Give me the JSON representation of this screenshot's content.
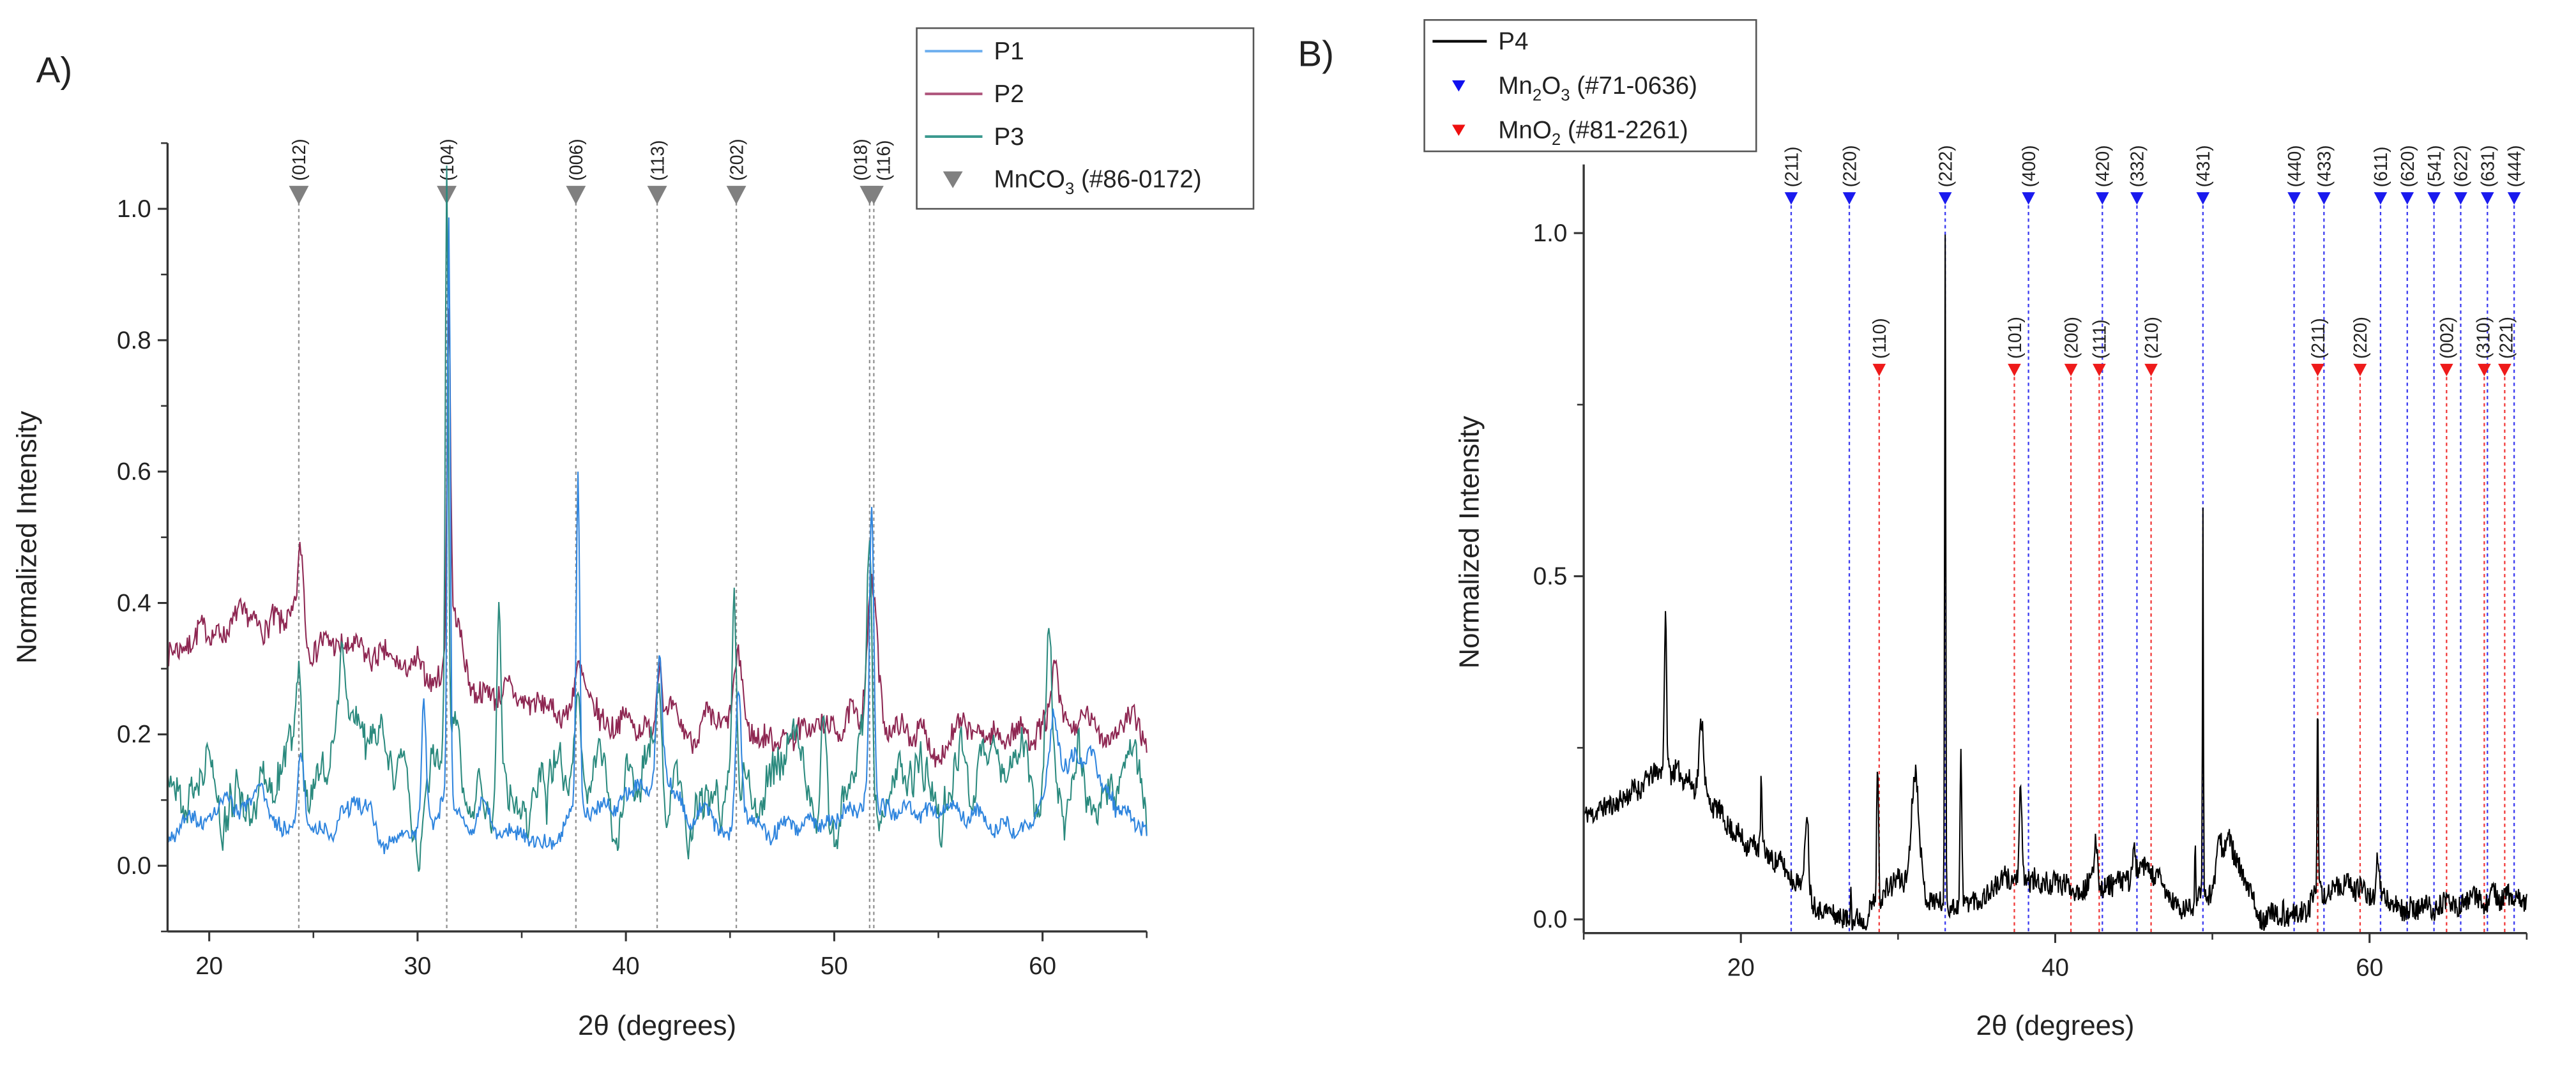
{
  "chart_data": [
    {
      "type": "line",
      "panel_label": "A)",
      "xlabel": "2θ (degrees)",
      "ylabel": "Normalized Intensity",
      "xlim": [
        18,
        65
      ],
      "ylim": [
        -0.1,
        1.1
      ],
      "xticks": [
        20,
        30,
        40,
        50,
        60
      ],
      "xminor": [
        25,
        35,
        45,
        55,
        65
      ],
      "yticks": [
        "0.0",
        "0.2",
        "0.4",
        "0.6",
        "0.8",
        "1.0"
      ],
      "yminor": [
        -0.1,
        0.1,
        0.3,
        0.5,
        0.7,
        0.9,
        1.1
      ],
      "grid": false,
      "legend_position": "top-right",
      "legend": [
        {
          "label": "P1",
          "kind": "line",
          "color": "#6fb0ef"
        },
        {
          "label": "P2",
          "kind": "line",
          "color": "#b0587e"
        },
        {
          "label": "P3",
          "kind": "line",
          "color": "#3c9a8f"
        },
        {
          "label": "MnCO",
          "sub": "3",
          "suffix": " (#86-0172)",
          "kind": "triangle",
          "color": "#808080"
        }
      ],
      "reference": {
        "name": "MnCO3 (#86-0172)",
        "color": "#808080",
        "marker_y": 1.02,
        "peaks": [
          {
            "x": 24.3,
            "hkl": "(012)"
          },
          {
            "x": 31.4,
            "hkl": "(104)"
          },
          {
            "x": 37.6,
            "hkl": "(006)"
          },
          {
            "x": 41.5,
            "hkl": "(113)"
          },
          {
            "x": 45.3,
            "hkl": "(202)"
          },
          {
            "x": 51.7,
            "hkl": "(018)"
          },
          {
            "x": 51.9,
            "hkl": "(116)"
          }
        ]
      },
      "series": [
        {
          "name": "P2",
          "color": "#8e2752",
          "step": 0.05,
          "seed": 7,
          "baseline": [
            [
              18,
              0.33
            ],
            [
              20,
              0.36
            ],
            [
              24,
              0.36
            ],
            [
              26,
              0.33
            ],
            [
              28,
              0.31
            ],
            [
              30,
              0.29
            ],
            [
              33,
              0.27
            ],
            [
              36,
              0.24
            ],
            [
              40,
              0.22
            ],
            [
              44,
              0.2
            ],
            [
              48,
              0.2
            ],
            [
              52,
              0.22
            ],
            [
              55,
              0.19
            ],
            [
              60,
              0.21
            ],
            [
              65,
              0.21
            ]
          ],
          "noise": {
            "smooth": 0.025,
            "white": 0.018
          },
          "peaks": [
            [
              24.4,
              0.13,
              0.2
            ],
            [
              31.5,
              0.5,
              0.12
            ],
            [
              31.8,
              0.1,
              0.5
            ],
            [
              37.7,
              0.06,
              0.3
            ],
            [
              41.6,
              0.12,
              0.2
            ],
            [
              45.4,
              0.11,
              0.3
            ],
            [
              51.8,
              0.2,
              0.35
            ],
            [
              60.6,
              0.08,
              0.2
            ]
          ]
        },
        {
          "name": "P3",
          "color": "#2b8a7e",
          "step": 0.05,
          "seed": 21,
          "baseline": [
            [
              18,
              0.12
            ],
            [
              22,
              0.12
            ],
            [
              26,
              0.15
            ],
            [
              30,
              0.16
            ],
            [
              34,
              0.14
            ],
            [
              38,
              0.12
            ],
            [
              42,
              0.12
            ],
            [
              46,
              0.11
            ],
            [
              50,
              0.12
            ],
            [
              54,
              0.12
            ],
            [
              58,
              0.12
            ],
            [
              62,
              0.11
            ],
            [
              65,
              0.1
            ]
          ],
          "noise": {
            "smooth": 0.11,
            "white": 0.012
          },
          "peaks": [
            [
              24.3,
              0.18,
              0.2
            ],
            [
              26.4,
              0.13,
              0.2
            ],
            [
              31.4,
              0.85,
              0.1
            ],
            [
              33.9,
              0.27,
              0.15
            ],
            [
              37.7,
              0.12,
              0.2
            ],
            [
              41.6,
              0.15,
              0.2
            ],
            [
              45.2,
              0.28,
              0.15
            ],
            [
              49.5,
              0.18,
              0.2
            ],
            [
              51.7,
              0.36,
              0.18
            ],
            [
              60.3,
              0.2,
              0.2
            ]
          ]
        },
        {
          "name": "P1",
          "color": "#2f85de",
          "step": 0.05,
          "seed": 3,
          "baseline": [
            [
              18,
              0.06
            ],
            [
              20,
              0.07
            ],
            [
              22,
              0.09
            ],
            [
              24,
              0.06
            ],
            [
              26,
              0.07
            ],
            [
              27,
              0.11
            ],
            [
              28.5,
              0.02
            ],
            [
              30,
              0.05
            ],
            [
              32,
              0.09
            ],
            [
              34,
              0.05
            ],
            [
              36,
              0.06
            ],
            [
              38,
              0.08
            ],
            [
              40,
              0.11
            ],
            [
              42,
              0.12
            ],
            [
              44,
              0.06
            ],
            [
              46,
              0.05
            ],
            [
              48,
              0.06
            ],
            [
              50,
              0.08
            ],
            [
              53,
              0.09
            ],
            [
              56,
              0.07
            ],
            [
              58,
              0.07
            ],
            [
              60,
              0.1
            ],
            [
              61.5,
              0.18
            ],
            [
              63,
              0.12
            ],
            [
              65,
              0.04
            ]
          ],
          "noise": {
            "smooth": 0.025,
            "white": 0.012
          },
          "peaks": [
            [
              24.4,
              0.11,
              0.2
            ],
            [
              30.3,
              0.18,
              0.15
            ],
            [
              31.5,
              0.9,
              0.1
            ],
            [
              37.7,
              0.5,
              0.12
            ],
            [
              41.6,
              0.2,
              0.2
            ],
            [
              45.4,
              0.22,
              0.2
            ],
            [
              51.8,
              0.45,
              0.15
            ],
            [
              60.5,
              0.1,
              0.3
            ]
          ]
        }
      ]
    },
    {
      "type": "line",
      "panel_label": "B)",
      "xlabel": "2θ (degrees)",
      "ylabel": "Normalized Intensity",
      "xlim": [
        10,
        70
      ],
      "ylim": [
        -0.02,
        1.1
      ],
      "xticks": [
        20,
        40,
        60
      ],
      "xminor": [
        10,
        30,
        50,
        70
      ],
      "yticks": [
        "0.0",
        "0.5",
        "1.0"
      ],
      "yminor": [
        0.25,
        0.75
      ],
      "grid": false,
      "legend_position": "top-left",
      "legend": [
        {
          "label": "P4",
          "kind": "line",
          "color": "#000000"
        },
        {
          "label": "Mn",
          "sub": "2",
          "mid": "O",
          "sub2": "3",
          "suffix": " (#71-0636)",
          "kind": "triangle",
          "color": "#1010ee"
        },
        {
          "label": "MnO",
          "sub": "2",
          "suffix": " (#81-2261)",
          "kind": "triangle",
          "color": "#ee1010"
        }
      ],
      "references": [
        {
          "name": "Mn2O3 (#71-0636)",
          "color": "#1a1aee",
          "marker_y": 1.05,
          "peaks": [
            {
              "x": 23.2,
              "hkl": "(211)"
            },
            {
              "x": 26.9,
              "hkl": "(220)"
            },
            {
              "x": 33.0,
              "hkl": "(222)"
            },
            {
              "x": 38.3,
              "hkl": "(400)"
            },
            {
              "x": 43.0,
              "hkl": "(420)"
            },
            {
              "x": 45.2,
              "hkl": "(332)"
            },
            {
              "x": 49.4,
              "hkl": "(431)"
            },
            {
              "x": 55.2,
              "hkl": "(440)"
            },
            {
              "x": 57.1,
              "hkl": "(433)"
            },
            {
              "x": 60.7,
              "hkl": "(611)"
            },
            {
              "x": 62.4,
              "hkl": "(620)"
            },
            {
              "x": 64.1,
              "hkl": "(541)"
            },
            {
              "x": 65.8,
              "hkl": "(622)"
            },
            {
              "x": 67.5,
              "hkl": "(631)"
            },
            {
              "x": 69.2,
              "hkl": "(444)"
            }
          ]
        },
        {
          "name": "MnO2 (#81-2261)",
          "color": "#ee1a1a",
          "marker_y": 0.8,
          "peaks": [
            {
              "x": 28.8,
              "hkl": "(110)"
            },
            {
              "x": 37.4,
              "hkl": "(101)"
            },
            {
              "x": 41.0,
              "hkl": "(200)"
            },
            {
              "x": 42.8,
              "hkl": "(111)"
            },
            {
              "x": 46.1,
              "hkl": "(210)"
            },
            {
              "x": 56.7,
              "hkl": "(211)"
            },
            {
              "x": 59.4,
              "hkl": "(220)"
            },
            {
              "x": 64.9,
              "hkl": "(002)"
            },
            {
              "x": 67.3,
              "hkl": "(310)"
            },
            {
              "x": 68.6,
              "hkl": "(221)"
            }
          ]
        }
      ],
      "series": [
        {
          "name": "P4",
          "color": "#000000",
          "step": 0.04,
          "seed": 11,
          "baseline": [
            [
              10,
              0.15
            ],
            [
              12,
              0.17
            ],
            [
              14,
              0.2
            ],
            [
              15,
              0.22
            ],
            [
              16.5,
              0.21
            ],
            [
              18,
              0.17
            ],
            [
              20,
              0.12
            ],
            [
              22,
              0.09
            ],
            [
              24,
              0.05
            ],
            [
              25.5,
              0.01
            ],
            [
              27,
              0.0
            ],
            [
              28,
              0.01
            ],
            [
              30,
              0.06
            ],
            [
              32,
              0.03
            ],
            [
              34,
              0.02
            ],
            [
              35,
              0.03
            ],
            [
              37,
              0.06
            ],
            [
              40,
              0.05
            ],
            [
              42,
              0.05
            ],
            [
              44,
              0.05
            ],
            [
              46,
              0.07
            ],
            [
              47,
              0.04
            ],
            [
              48,
              0.01
            ],
            [
              50,
              0.04
            ],
            [
              51,
              0.12
            ],
            [
              52,
              0.05
            ],
            [
              53,
              0.01
            ],
            [
              55,
              0.0
            ],
            [
              56,
              0.02
            ],
            [
              58,
              0.05
            ],
            [
              61,
              0.03
            ],
            [
              62,
              0.015
            ],
            [
              65,
              0.02
            ],
            [
              68,
              0.03
            ],
            [
              70,
              0.03
            ]
          ],
          "noise": {
            "smooth": 0.01,
            "white": 0.016
          },
          "peaks": [
            [
              15.2,
              0.22,
              0.1
            ],
            [
              17.5,
              0.11,
              0.2
            ],
            [
              21.3,
              0.1,
              0.06
            ],
            [
              24.2,
              0.12,
              0.15
            ],
            [
              27.0,
              0.07,
              0.05
            ],
            [
              28.7,
              0.21,
              0.08
            ],
            [
              31.1,
              0.18,
              0.35
            ],
            [
              33.0,
              0.98,
              0.05
            ],
            [
              34.0,
              0.22,
              0.08
            ],
            [
              37.8,
              0.13,
              0.1
            ],
            [
              42.6,
              0.07,
              0.15
            ],
            [
              45.0,
              0.04,
              0.15
            ],
            [
              49.4,
              0.57,
              0.04
            ],
            [
              48.9,
              0.1,
              0.05
            ],
            [
              50.4,
              0.07,
              0.2
            ],
            [
              54.5,
              0.04,
              0.05
            ],
            [
              56.7,
              0.28,
              0.05
            ],
            [
              60.5,
              0.06,
              0.15
            ]
          ]
        }
      ]
    }
  ]
}
